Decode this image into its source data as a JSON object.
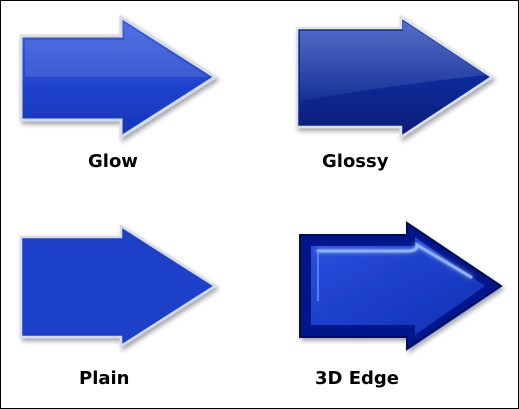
{
  "arrows": [
    {
      "style": "glow",
      "label": "Glow"
    },
    {
      "style": "glossy",
      "label": "Glossy"
    },
    {
      "style": "plain",
      "label": "Plain"
    },
    {
      "style": "3d-edge",
      "label": "3D Edge"
    }
  ],
  "colors": {
    "arrow_blue": "#1f3fc8",
    "glossy_blue": "#0b2a9a",
    "edge_dark": "#05157a",
    "highlight": "#7fa8ff",
    "border": "#000000"
  }
}
